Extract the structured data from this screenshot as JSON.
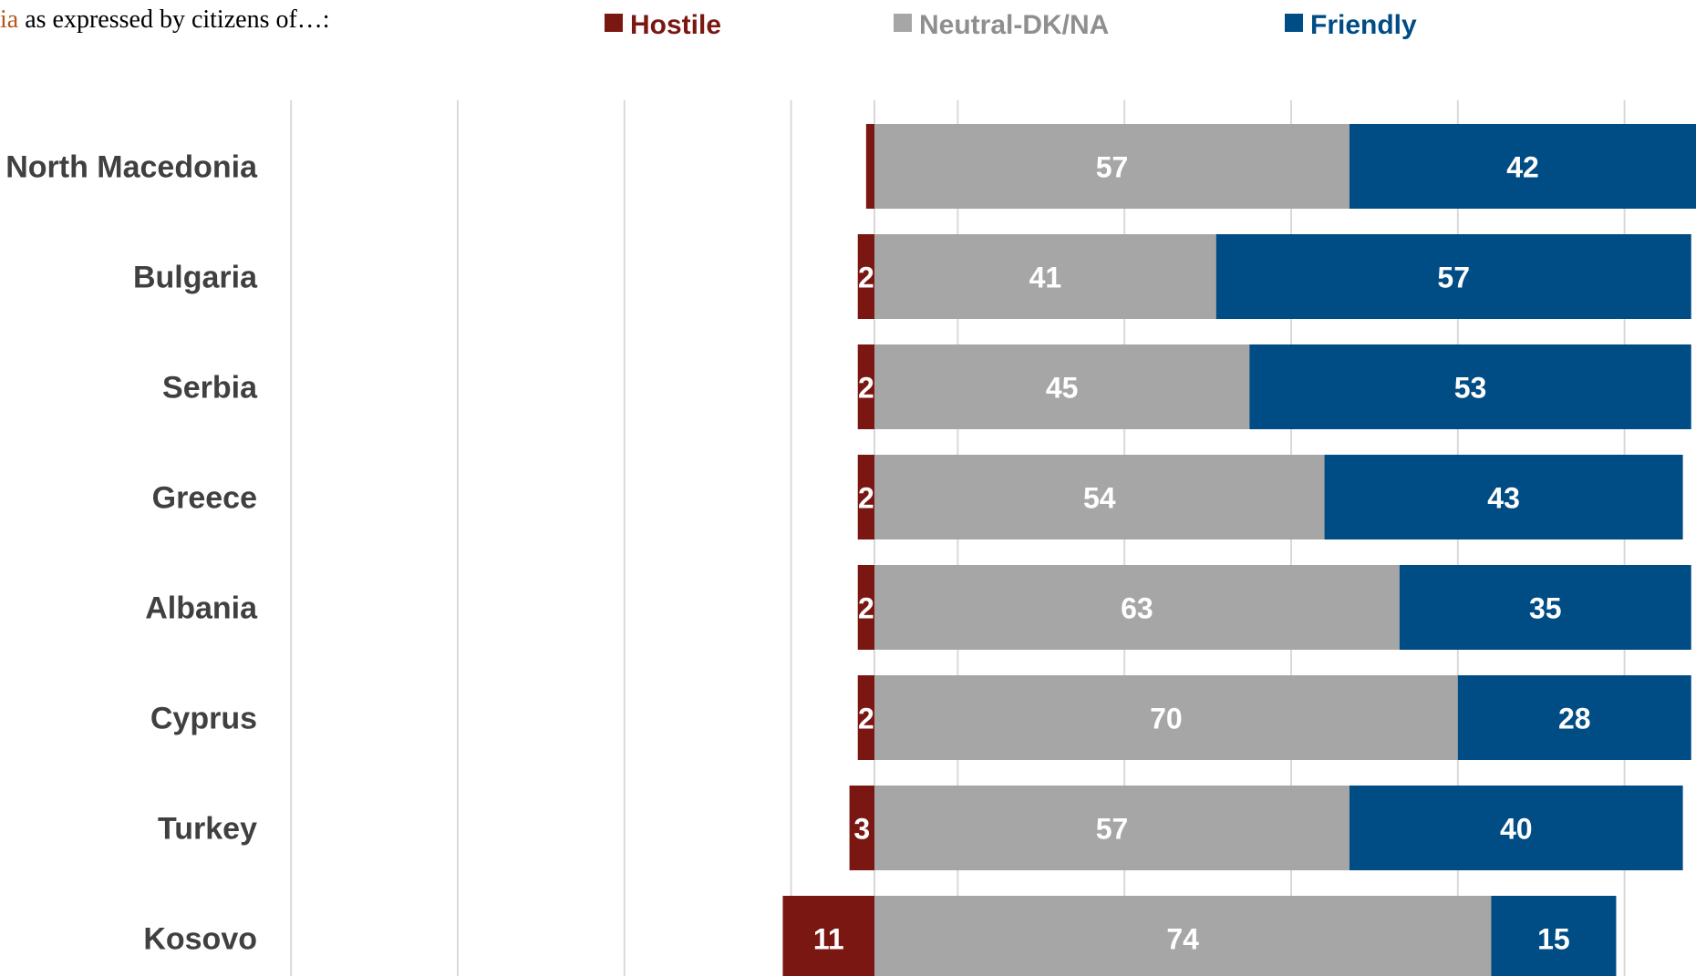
{
  "chart_data": {
    "type": "bar",
    "orientation": "horizontal",
    "stacked": "diverging",
    "title_fragment": "ia",
    "title_rest": " as expressed by citizens of…:",
    "categories": [
      "North Macedonia",
      "Bulgaria",
      "Serbia",
      "Greece",
      "Albania",
      "Cyprus",
      "Turkey",
      "Kosovo"
    ],
    "series": [
      {
        "name": "Hostile",
        "color": "#7b1712",
        "values": [
          1,
          2,
          2,
          2,
          2,
          2,
          3,
          11
        ],
        "labels": [
          "",
          "2",
          "2",
          "2",
          "2",
          "2",
          "3",
          "11"
        ],
        "direction": "negative"
      },
      {
        "name": "Neutral-DK/NA",
        "color": "#a6a6a6",
        "values": [
          57,
          41,
          45,
          54,
          63,
          70,
          57,
          74
        ],
        "labels": [
          "57",
          "41",
          "45",
          "54",
          "63",
          "70",
          "57",
          "74"
        ]
      },
      {
        "name": "Friendly",
        "color": "#004c84",
        "values": [
          42,
          57,
          53,
          43,
          35,
          28,
          40,
          15
        ],
        "labels": [
          "42",
          "57",
          "53",
          "43",
          "35",
          "28",
          "40",
          "15"
        ]
      }
    ],
    "title_accent_color": "#b5561d",
    "xlim": [
      -70,
      98
    ],
    "gridlines": [
      -70,
      -50,
      -30,
      -10,
      0,
      10,
      30,
      50,
      70,
      90
    ],
    "grid": true,
    "legend_position": "top"
  }
}
